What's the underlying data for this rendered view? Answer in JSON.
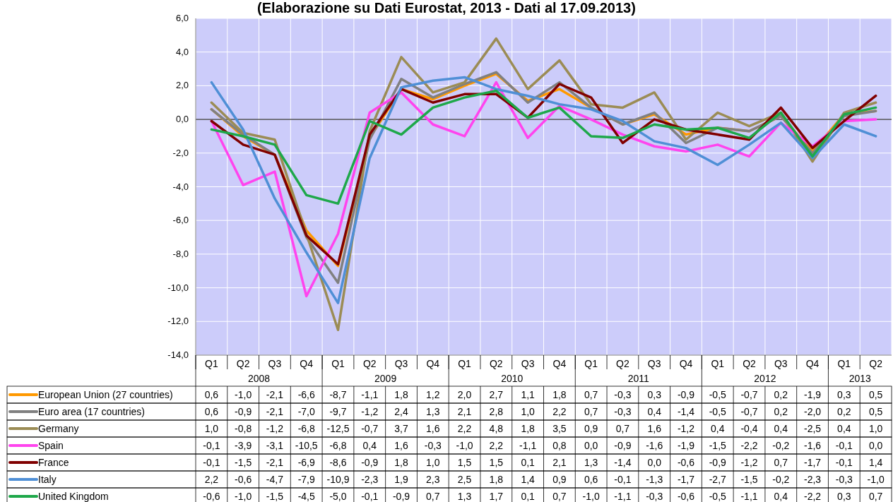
{
  "chart_data": {
    "type": "line",
    "title": "(Elaborazione su Dati Eurostat, 2013 - Dati al 17.09.2013)",
    "categories": [
      "Q1",
      "Q2",
      "Q3",
      "Q4",
      "Q1",
      "Q2",
      "Q3",
      "Q4",
      "Q1",
      "Q2",
      "Q3",
      "Q4",
      "Q1",
      "Q2",
      "Q3",
      "Q4",
      "Q1",
      "Q2",
      "Q3",
      "Q4",
      "Q1",
      "Q2"
    ],
    "annotations": [
      "2008",
      "2009",
      "2010",
      "2011",
      "2012",
      "2013"
    ],
    "series": [
      {
        "name": "European Union (27 countries)",
        "color": "#ff9900",
        "values": [
          0.6,
          -1.0,
          -2.1,
          -6.6,
          -8.7,
          -1.1,
          1.8,
          1.2,
          2.0,
          2.7,
          1.1,
          1.8,
          0.7,
          -0.3,
          0.3,
          -0.9,
          -0.5,
          -0.7,
          0.2,
          -1.9,
          0.3,
          0.5
        ],
        "value_labels": [
          "0,6",
          "-1,0",
          "-2,1",
          "-6,6",
          "-8,7",
          "-1,1",
          "1,8",
          "1,2",
          "2,0",
          "2,7",
          "1,1",
          "1,8",
          "0,7",
          "-0,3",
          "0,3",
          "-0,9",
          "-0,5",
          "-0,7",
          "0,2",
          "-1,9",
          "0,3",
          "0,5"
        ]
      },
      {
        "name": "Euro area (17 countries)",
        "color": "#808080",
        "values": [
          0.6,
          -0.9,
          -2.1,
          -7.0,
          -9.7,
          -1.2,
          2.4,
          1.3,
          2.1,
          2.8,
          1.0,
          2.2,
          0.7,
          -0.3,
          0.4,
          -1.4,
          -0.5,
          -0.7,
          0.2,
          -2.0,
          0.2,
          0.5
        ],
        "value_labels": [
          "0,6",
          "-0,9",
          "-2,1",
          "-7,0",
          "-9,7",
          "-1,2",
          "2,4",
          "1,3",
          "2,1",
          "2,8",
          "1,0",
          "2,2",
          "0,7",
          "-0,3",
          "0,4",
          "-1,4",
          "-0,5",
          "-0,7",
          "0,2",
          "-2,0",
          "0,2",
          "0,5"
        ]
      },
      {
        "name": "Germany",
        "color": "#9b8c55",
        "values": [
          1.0,
          -0.8,
          -1.2,
          -6.8,
          -12.5,
          -0.7,
          3.7,
          1.6,
          2.2,
          4.8,
          1.8,
          3.5,
          0.9,
          0.7,
          1.6,
          -1.2,
          0.4,
          -0.4,
          0.4,
          -2.5,
          0.4,
          1.0
        ],
        "value_labels": [
          "1,0",
          "-0,8",
          "-1,2",
          "-6,8",
          "-12,5",
          "-0,7",
          "3,7",
          "1,6",
          "2,2",
          "4,8",
          "1,8",
          "3,5",
          "0,9",
          "0,7",
          "1,6",
          "-1,2",
          "0,4",
          "-0,4",
          "0,4",
          "-2,5",
          "0,4",
          "1,0"
        ]
      },
      {
        "name": "Spain",
        "color": "#ff44ee",
        "values": [
          -0.1,
          -3.9,
          -3.1,
          -10.5,
          -6.8,
          0.4,
          1.6,
          -0.3,
          -1.0,
          2.2,
          -1.1,
          0.8,
          0.0,
          -0.9,
          -1.6,
          -1.9,
          -1.5,
          -2.2,
          -0.2,
          -1.6,
          -0.1,
          0.0
        ],
        "value_labels": [
          "-0,1",
          "-3,9",
          "-3,1",
          "-10,5",
          "-6,8",
          "0,4",
          "1,6",
          "-0,3",
          "-1,0",
          "2,2",
          "-1,1",
          "0,8",
          "0,0",
          "-0,9",
          "-1,6",
          "-1,9",
          "-1,5",
          "-2,2",
          "-0,2",
          "-1,6",
          "-0,1",
          "0,0"
        ]
      },
      {
        "name": "France",
        "color": "#800000",
        "values": [
          -0.1,
          -1.5,
          -2.1,
          -6.9,
          -8.6,
          -0.9,
          1.8,
          1.0,
          1.5,
          1.5,
          0.1,
          2.1,
          1.3,
          -1.4,
          0.0,
          -0.6,
          -0.9,
          -1.2,
          0.7,
          -1.7,
          -0.1,
          1.4
        ],
        "value_labels": [
          "-0,1",
          "-1,5",
          "-2,1",
          "-6,9",
          "-8,6",
          "-0,9",
          "1,8",
          "1,0",
          "1,5",
          "1,5",
          "0,1",
          "2,1",
          "1,3",
          "-1,4",
          "0,0",
          "-0,6",
          "-0,9",
          "-1,2",
          "0,7",
          "-1,7",
          "-0,1",
          "1,4"
        ]
      },
      {
        "name": "Italy",
        "color": "#4f8fd6",
        "values": [
          2.2,
          -0.6,
          -4.7,
          -7.9,
          -10.9,
          -2.3,
          1.9,
          2.3,
          2.5,
          1.8,
          1.4,
          0.9,
          0.6,
          -0.1,
          -1.3,
          -1.7,
          -2.7,
          -1.5,
          -0.2,
          -2.3,
          -0.3,
          -1.0
        ],
        "value_labels": [
          "2,2",
          "-0,6",
          "-4,7",
          "-7,9",
          "-10,9",
          "-2,3",
          "1,9",
          "2,3",
          "2,5",
          "1,8",
          "1,4",
          "0,9",
          "0,6",
          "-0,1",
          "-1,3",
          "-1,7",
          "-2,7",
          "-1,5",
          "-0,2",
          "-2,3",
          "-0,3",
          "-1,0"
        ]
      },
      {
        "name": "United Kingdom",
        "color": "#1ea84a",
        "values": [
          -0.6,
          -1.0,
          -1.5,
          -4.5,
          -5.0,
          -0.1,
          -0.9,
          0.7,
          1.3,
          1.7,
          0.1,
          0.7,
          -1.0,
          -1.1,
          -0.3,
          -0.6,
          -0.5,
          -1.1,
          0.4,
          -2.2,
          0.3,
          0.7
        ],
        "value_labels": [
          "-0,6",
          "-1,0",
          "-1,5",
          "-4,5",
          "-5,0",
          "-0,1",
          "-0,9",
          "0,7",
          "1,3",
          "1,7",
          "0,1",
          "0,7",
          "-1,0",
          "-1,1",
          "-0,3",
          "-0,6",
          "-0,5",
          "-1,1",
          "0,4",
          "-2,2",
          "0,3",
          "0,7"
        ]
      }
    ],
    "ylim": [
      -14,
      6
    ],
    "yticks": [
      {
        "value": -14,
        "label": "-14,0"
      },
      {
        "value": -12,
        "label": "-12,0"
      },
      {
        "value": -10,
        "label": "-10,0"
      },
      {
        "value": -8,
        "label": "-8,0"
      },
      {
        "value": -6,
        "label": "-6,0"
      },
      {
        "value": -4,
        "label": "-4,0"
      },
      {
        "value": -2,
        "label": "-2,0"
      },
      {
        "value": 0,
        "label": "0,0"
      },
      {
        "value": 2,
        "label": "2,0"
      },
      {
        "value": 4,
        "label": "4,0"
      },
      {
        "value": 6,
        "label": "6,0"
      }
    ],
    "ref_lines": [
      {
        "axis": "y",
        "value": 0,
        "color": "#000000"
      }
    ],
    "grid": true,
    "legend": "bottom",
    "marker": "none",
    "line_style": "solid"
  }
}
